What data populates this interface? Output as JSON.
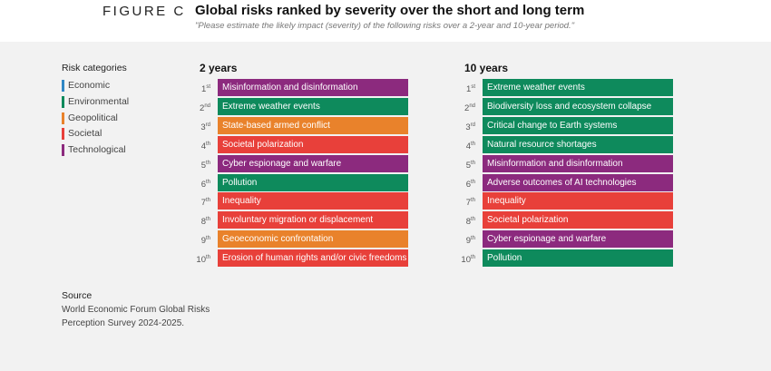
{
  "header": {
    "figure": "FIGURE C",
    "title": "Global risks ranked by severity over the short and long term",
    "subtitle": "\"Please estimate the likely impact (severity) of the following risks over a 2-year and 10-year period.\""
  },
  "legend": {
    "title": "Risk categories",
    "categories": [
      {
        "name": "Economic",
        "color": "#2f86c4"
      },
      {
        "name": "Environmental",
        "color": "#0e8a5c"
      },
      {
        "name": "Geopolitical",
        "color": "#e9822b"
      },
      {
        "name": "Societal",
        "color": "#e8403a"
      },
      {
        "name": "Technological",
        "color": "#8c2a7e"
      }
    ]
  },
  "ranks": [
    {
      "n": "1",
      "sup": "st"
    },
    {
      "n": "2",
      "sup": "nd"
    },
    {
      "n": "3",
      "sup": "rd"
    },
    {
      "n": "4",
      "sup": "th"
    },
    {
      "n": "5",
      "sup": "th"
    },
    {
      "n": "6",
      "sup": "th"
    },
    {
      "n": "7",
      "sup": "th"
    },
    {
      "n": "8",
      "sup": "th"
    },
    {
      "n": "9",
      "sup": "th"
    },
    {
      "n": "10",
      "sup": "th"
    }
  ],
  "columns": [
    {
      "heading": "2 years",
      "items": [
        {
          "label": "Misinformation and disinformation",
          "category": "Technological"
        },
        {
          "label": "Extreme weather events",
          "category": "Environmental"
        },
        {
          "label": "State-based armed conflict",
          "category": "Geopolitical"
        },
        {
          "label": "Societal polarization",
          "category": "Societal"
        },
        {
          "label": "Cyber espionage and warfare",
          "category": "Technological"
        },
        {
          "label": "Pollution",
          "category": "Environmental"
        },
        {
          "label": "Inequality",
          "category": "Societal"
        },
        {
          "label": "Involuntary migration or displacement",
          "category": "Societal"
        },
        {
          "label": "Geoeconomic confrontation",
          "category": "Geopolitical"
        },
        {
          "label": "Erosion of human rights and/or civic freedoms",
          "category": "Societal"
        }
      ]
    },
    {
      "heading": "10 years",
      "items": [
        {
          "label": "Extreme weather events",
          "category": "Environmental"
        },
        {
          "label": "Biodiversity loss and ecosystem collapse",
          "category": "Environmental"
        },
        {
          "label": "Critical change to Earth systems",
          "category": "Environmental"
        },
        {
          "label": "Natural resource shortages",
          "category": "Environmental"
        },
        {
          "label": "Misinformation and disinformation",
          "category": "Technological"
        },
        {
          "label": "Adverse outcomes of AI technologies",
          "category": "Technological"
        },
        {
          "label": "Inequality",
          "category": "Societal"
        },
        {
          "label": "Societal polarization",
          "category": "Societal"
        },
        {
          "label": "Cyber espionage and warfare",
          "category": "Technological"
        },
        {
          "label": "Pollution",
          "category": "Environmental"
        }
      ]
    }
  ],
  "source": {
    "title": "Source",
    "lines": [
      "World Economic Forum Global Risks",
      "Perception Survey 2024-2025."
    ]
  }
}
